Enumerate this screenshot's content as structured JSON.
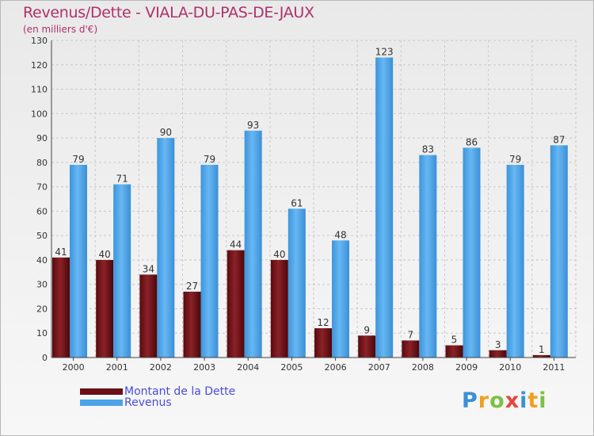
{
  "chart_data": {
    "type": "bar",
    "title": "Revenus/Dette - VIALA-DU-PAS-DE-JAUX",
    "subtitle": "(en milliers d'€)",
    "categories": [
      "2000",
      "2001",
      "2002",
      "2003",
      "2004",
      "2005",
      "2006",
      "2007",
      "2008",
      "2009",
      "2010",
      "2011"
    ],
    "series": [
      {
        "name": "Montant de la Dette",
        "color": "#6b0f14",
        "values": [
          41,
          40,
          34,
          27,
          44,
          40,
          12,
          9,
          7,
          5,
          3,
          1
        ]
      },
      {
        "name": "Revenus",
        "color": "#4aa3e8",
        "values": [
          79,
          71,
          90,
          79,
          93,
          61,
          48,
          123,
          83,
          86,
          79,
          87
        ]
      }
    ],
    "ylim": [
      0,
      130
    ],
    "yticks": [
      0,
      10,
      20,
      30,
      40,
      50,
      60,
      70,
      80,
      90,
      100,
      110,
      120,
      130
    ],
    "grid": true,
    "legend": "bottom-left"
  },
  "logo_text": "Proxiti"
}
